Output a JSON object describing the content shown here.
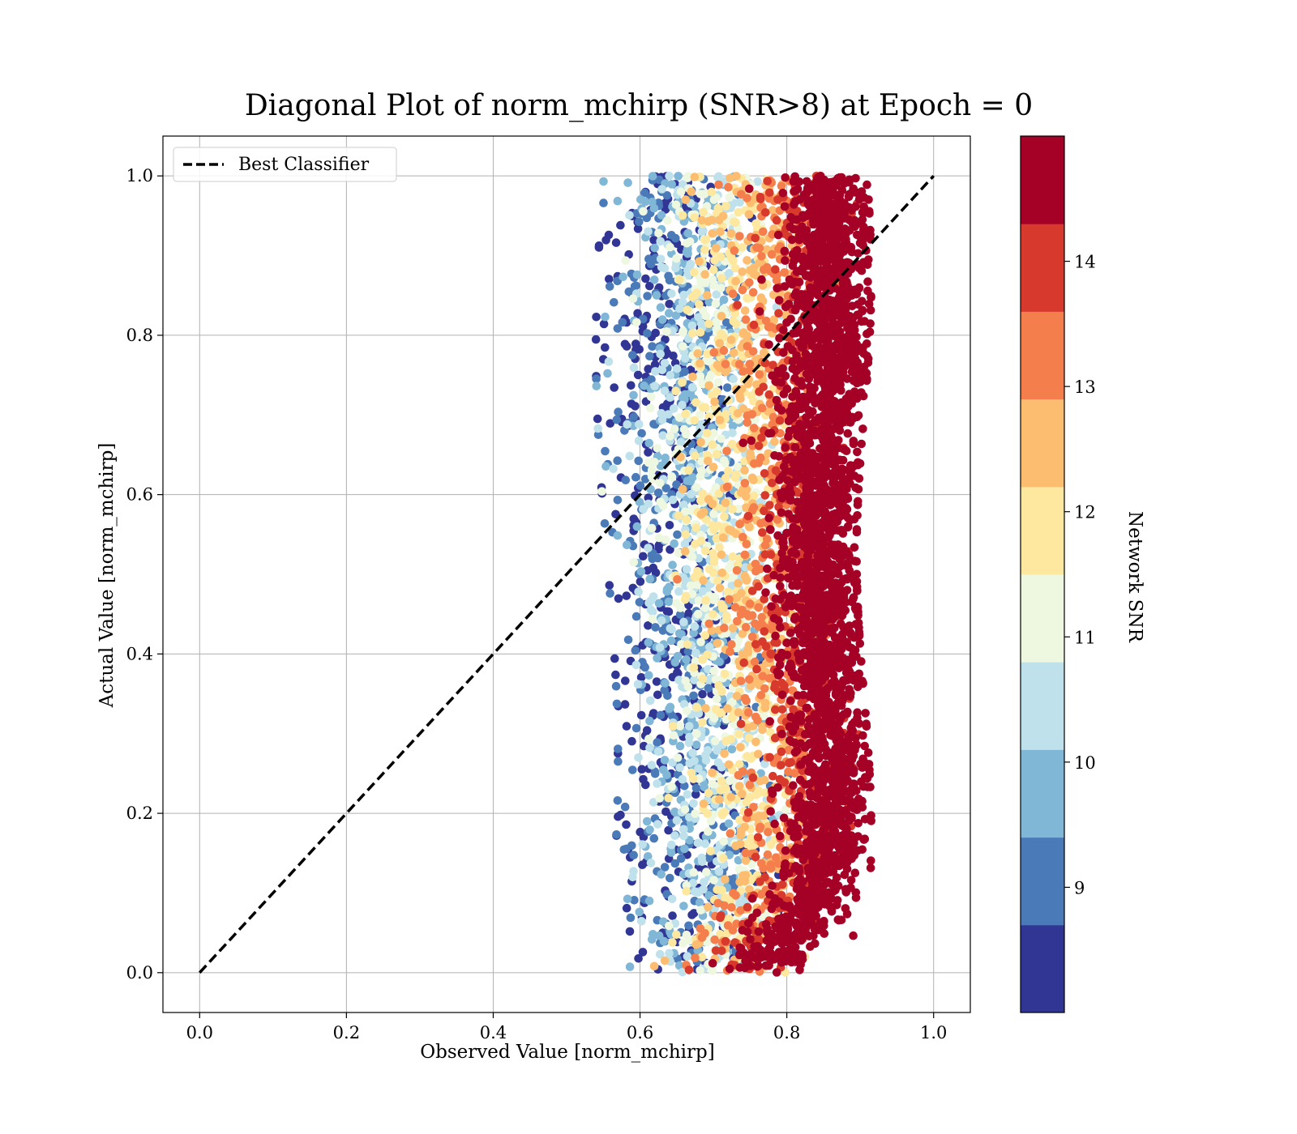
{
  "chart_data": {
    "type": "scatter",
    "title": "Diagonal Plot of norm_mchirp (SNR>8) at Epoch = 0",
    "xlabel": "Observed Value [norm_mchirp]",
    "ylabel": "Actual Value [norm_mchirp]",
    "xlim": [
      -0.05,
      1.05
    ],
    "ylim": [
      -0.05,
      1.05
    ],
    "xticks": [
      "0.0",
      "0.2",
      "0.4",
      "0.6",
      "0.8",
      "1.0"
    ],
    "yticks": [
      "0.0",
      "0.2",
      "0.4",
      "0.6",
      "0.8",
      "1.0"
    ],
    "grid": true,
    "legend": {
      "placement": "upper-left",
      "entries": [
        {
          "label": "Best Classifier",
          "style": "dashed",
          "color": "#000000"
        }
      ]
    },
    "reference_line": {
      "name": "Best Classifier",
      "x": [
        0.0,
        1.0
      ],
      "y": [
        0.0,
        1.0
      ],
      "style": "dashed",
      "color": "#000000"
    },
    "colorbar": {
      "label": "Network SNR",
      "range": [
        8,
        15
      ],
      "ticks": [
        "9",
        "10",
        "11",
        "12",
        "13",
        "14"
      ],
      "tick_values": [
        9,
        10,
        11,
        12,
        13,
        14
      ],
      "colormap": "RdYlBu_r",
      "bins": [
        {
          "from": 8.0,
          "to": 8.7,
          "color": "#313695"
        },
        {
          "from": 8.7,
          "to": 9.4,
          "color": "#4a7ab8"
        },
        {
          "from": 9.4,
          "to": 10.1,
          "color": "#80b6d6"
        },
        {
          "from": 10.1,
          "to": 10.8,
          "color": "#bfe1ec"
        },
        {
          "from": 10.8,
          "to": 11.5,
          "color": "#eef7e0"
        },
        {
          "from": 11.5,
          "to": 12.2,
          "color": "#fee8a0"
        },
        {
          "from": 12.2,
          "to": 12.9,
          "color": "#fdbd70"
        },
        {
          "from": 12.9,
          "to": 13.6,
          "color": "#f57e4d"
        },
        {
          "from": 13.6,
          "to": 14.3,
          "color": "#d73a2c"
        },
        {
          "from": 14.3,
          "to": 15.0,
          "color": "#a50026"
        }
      ]
    },
    "points_summary": {
      "x_range": [
        0.56,
        0.91
      ],
      "y_range": [
        0.0,
        1.0
      ],
      "note": "Dense cloud; low-SNR points toward x≈0.57–0.75, high-SNR points concentrated near x≈0.80–0.89"
    }
  }
}
